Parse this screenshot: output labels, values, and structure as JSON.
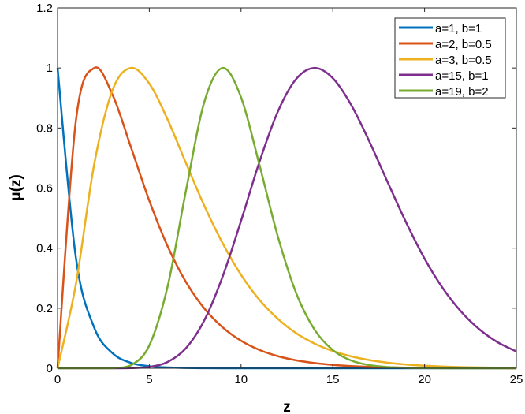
{
  "chart_data": {
    "type": "line",
    "title": "",
    "xlabel": "z",
    "ylabel": "μ(z)",
    "xlim": [
      0,
      25
    ],
    "ylim": [
      0,
      1.2
    ],
    "xticks": [
      0,
      5,
      10,
      15,
      20,
      25
    ],
    "yticks": [
      0,
      0.2,
      0.4,
      0.6,
      0.8,
      1,
      1.2
    ],
    "xtick_labels": [
      "0",
      "5",
      "10",
      "15",
      "20",
      "25"
    ],
    "ytick_labels": [
      "0",
      "0.2",
      "0.4",
      "0.6",
      "0.8",
      "1",
      "1.2"
    ],
    "grid": false,
    "legend_position": "top-right",
    "x": [
      0,
      1,
      2,
      3,
      4,
      5,
      6,
      7,
      8,
      9,
      10,
      11,
      12,
      13,
      14,
      15,
      16,
      17,
      18,
      19,
      20,
      21,
      22,
      23,
      24,
      25
    ],
    "series": [
      {
        "name": "a=1, b=1",
        "color": "#0072BD",
        "values": [
          1,
          0.368,
          0.135,
          0.05,
          0.018,
          0.0067,
          0.0025,
          0.0009,
          0.0003,
          0.0001,
          0,
          0,
          0,
          0,
          0,
          0,
          0,
          0,
          0,
          0,
          0,
          0,
          0,
          0,
          0,
          0
        ]
      },
      {
        "name": "a=2, b=0.5",
        "color": "#D95319",
        "values": [
          0,
          0.824,
          1,
          0.91,
          0.736,
          0.558,
          0.406,
          0.287,
          0.199,
          0.136,
          0.0916,
          0.061,
          0.0404,
          0.0266,
          0.0174,
          0.0113,
          0.0073,
          0.0047,
          0.003,
          0.0019,
          0.0012,
          0.0008,
          0.0005,
          0.0003,
          0.0002,
          0.0001
        ]
      },
      {
        "name": "a=3, b=0.5",
        "color": "#EDB120",
        "values": [
          0,
          0.28,
          0.68,
          0.927,
          1,
          0.948,
          0.828,
          0.683,
          0.541,
          0.416,
          0.311,
          0.228,
          0.165,
          0.117,
          0.0825,
          0.0575,
          0.0397,
          0.0272,
          0.0185,
          0.0125,
          0.0084,
          0.0056,
          0.0037,
          0.0025,
          0.0016,
          0.0011
        ]
      },
      {
        "name": "a=15, b=1",
        "color": "#7E2F8E",
        "values": [
          0,
          0,
          0,
          0,
          0.0005,
          0.0045,
          0.021,
          0.067,
          0.16,
          0.306,
          0.491,
          0.687,
          0.854,
          0.963,
          1,
          0.966,
          0.877,
          0.754,
          0.618,
          0.485,
          0.365,
          0.266,
          0.188,
          0.129,
          0.086,
          0.056
        ]
      },
      {
        "name": "a=19, b=2",
        "color": "#77AC30",
        "values": [
          0,
          0,
          0,
          0.0004,
          0.01,
          0.076,
          0.273,
          0.592,
          0.887,
          1,
          0.902,
          0.678,
          0.44,
          0.251,
          0.129,
          0.0605,
          0.026,
          0.0105,
          0.004,
          0.0014,
          0.0005,
          0,
          0,
          0,
          0,
          0
        ]
      }
    ]
  }
}
